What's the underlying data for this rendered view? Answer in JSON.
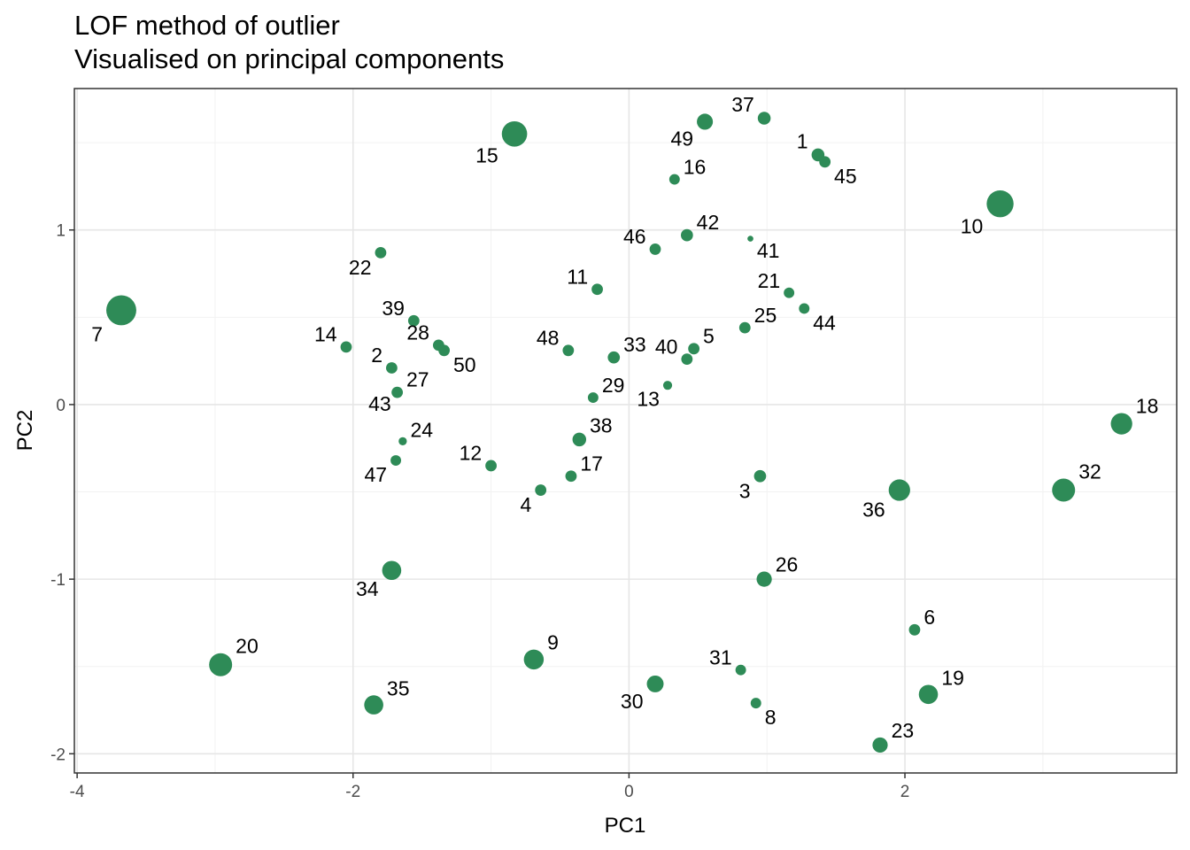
{
  "chart_data": {
    "type": "scatter",
    "title": "LOF method of outlier",
    "subtitle": "Visualised on principal components",
    "xlabel": "PC1",
    "ylabel": "PC2",
    "xlim": [
      -4.02,
      3.97
    ],
    "ylim": [
      -2.11,
      1.81
    ],
    "x_ticks": [
      -4,
      -2,
      0,
      2
    ],
    "y_ticks": [
      -2,
      -1,
      0,
      1
    ],
    "grid": true,
    "point_color": "#2e8b57",
    "points": [
      {
        "label": "1",
        "x": 1.37,
        "y": 1.43,
        "size": 1.2
      },
      {
        "label": "2",
        "x": -1.72,
        "y": 0.21,
        "size": 1.0
      },
      {
        "label": "3",
        "x": 0.95,
        "y": -0.41,
        "size": 1.1
      },
      {
        "label": "4",
        "x": -0.64,
        "y": -0.49,
        "size": 1.0
      },
      {
        "label": "5",
        "x": 0.47,
        "y": 0.32,
        "size": 1.0
      },
      {
        "label": "6",
        "x": 2.07,
        "y": -1.29,
        "size": 1.0
      },
      {
        "label": "7",
        "x": -3.68,
        "y": 0.54,
        "size": 3.4
      },
      {
        "label": "8",
        "x": 0.92,
        "y": -1.71,
        "size": 0.9
      },
      {
        "label": "9",
        "x": -0.69,
        "y": -1.46,
        "size": 2.1
      },
      {
        "label": "10",
        "x": 2.69,
        "y": 1.15,
        "size": 3.0
      },
      {
        "label": "11",
        "x": -0.23,
        "y": 0.66,
        "size": 1.0
      },
      {
        "label": "12",
        "x": -1.0,
        "y": -0.35,
        "size": 1.0
      },
      {
        "label": "13",
        "x": 0.28,
        "y": 0.11,
        "size": 0.7
      },
      {
        "label": "14",
        "x": -2.05,
        "y": 0.33,
        "size": 1.0
      },
      {
        "label": "15",
        "x": -0.83,
        "y": 1.55,
        "size": 2.8
      },
      {
        "label": "16",
        "x": 0.33,
        "y": 1.29,
        "size": 0.9
      },
      {
        "label": "17",
        "x": -0.42,
        "y": -0.41,
        "size": 1.0
      },
      {
        "label": "18",
        "x": 3.57,
        "y": -0.11,
        "size": 2.3
      },
      {
        "label": "19",
        "x": 2.17,
        "y": -1.66,
        "size": 2.0
      },
      {
        "label": "20",
        "x": -2.96,
        "y": -1.49,
        "size": 2.5
      },
      {
        "label": "21",
        "x": 1.16,
        "y": 0.64,
        "size": 0.9
      },
      {
        "label": "22",
        "x": -1.8,
        "y": 0.87,
        "size": 1.0
      },
      {
        "label": "23",
        "x": 1.82,
        "y": -1.95,
        "size": 1.5
      },
      {
        "label": "24",
        "x": -1.64,
        "y": -0.21,
        "size": 0.6
      },
      {
        "label": "25",
        "x": 0.84,
        "y": 0.44,
        "size": 1.0
      },
      {
        "label": "26",
        "x": 0.98,
        "y": -1.0,
        "size": 1.5
      },
      {
        "label": "27",
        "x": -1.68,
        "y": 0.07,
        "size": 1.0
      },
      {
        "label": "28",
        "x": -1.38,
        "y": 0.34,
        "size": 1.0
      },
      {
        "label": "29",
        "x": -0.26,
        "y": 0.04,
        "size": 0.9
      },
      {
        "label": "30",
        "x": 0.19,
        "y": -1.6,
        "size": 1.7
      },
      {
        "label": "31",
        "x": 0.81,
        "y": -1.52,
        "size": 0.9
      },
      {
        "label": "32",
        "x": 3.15,
        "y": -0.49,
        "size": 2.5
      },
      {
        "label": "33",
        "x": -0.11,
        "y": 0.27,
        "size": 1.1
      },
      {
        "label": "34",
        "x": -1.72,
        "y": -0.95,
        "size": 2.0
      },
      {
        "label": "35",
        "x": -1.85,
        "y": -1.72,
        "size": 2.0
      },
      {
        "label": "36",
        "x": 1.96,
        "y": -0.49,
        "size": 2.3
      },
      {
        "label": "37",
        "x": 0.98,
        "y": 1.64,
        "size": 1.2
      },
      {
        "label": "38",
        "x": -0.36,
        "y": -0.2,
        "size": 1.3
      },
      {
        "label": "39",
        "x": -1.56,
        "y": 0.48,
        "size": 1.0
      },
      {
        "label": "40",
        "x": 0.42,
        "y": 0.26,
        "size": 1.0
      },
      {
        "label": "41",
        "x": 0.88,
        "y": 0.95,
        "size": 0.3
      },
      {
        "label": "42",
        "x": 0.42,
        "y": 0.97,
        "size": 1.1
      },
      {
        "label": "43",
        "x": -1.68,
        "y": 0.07,
        "size": 0.2
      },
      {
        "label": "44",
        "x": 1.27,
        "y": 0.55,
        "size": 0.9
      },
      {
        "label": "45",
        "x": 1.42,
        "y": 1.39,
        "size": 1.0
      },
      {
        "label": "46",
        "x": 0.19,
        "y": 0.89,
        "size": 1.0
      },
      {
        "label": "47",
        "x": -1.69,
        "y": -0.32,
        "size": 0.9
      },
      {
        "label": "48",
        "x": -0.44,
        "y": 0.31,
        "size": 1.0
      },
      {
        "label": "49",
        "x": 0.55,
        "y": 1.62,
        "size": 1.6
      },
      {
        "label": "50",
        "x": -1.34,
        "y": 0.31,
        "size": 1.0
      }
    ]
  }
}
